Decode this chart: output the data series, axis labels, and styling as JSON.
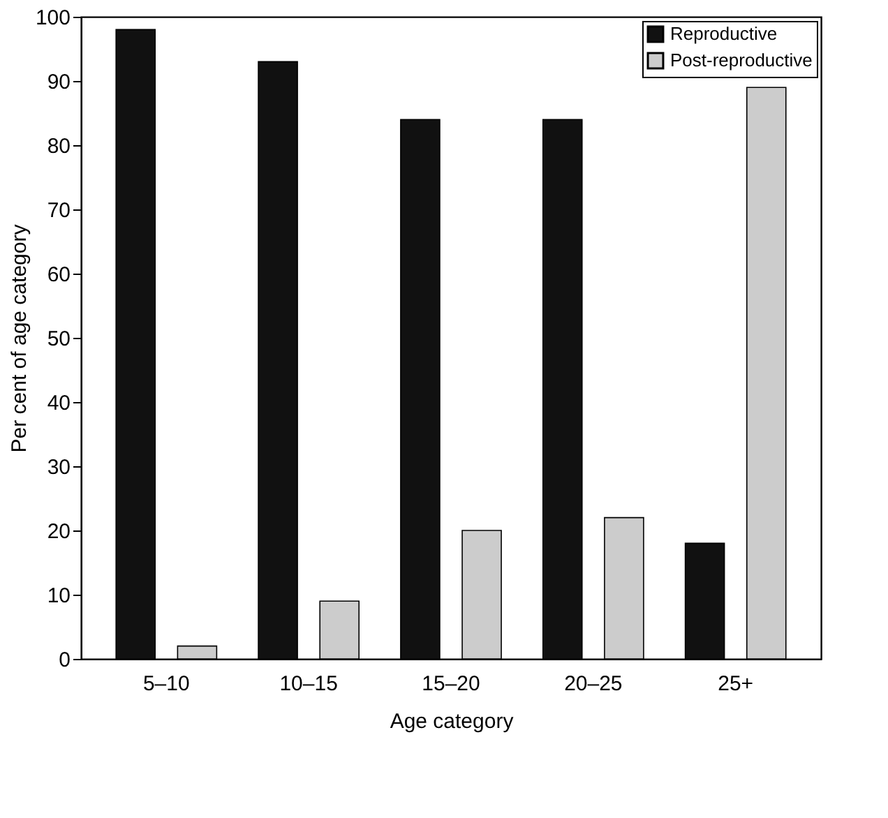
{
  "chart_data": {
    "type": "bar",
    "xlabel": "Age category",
    "ylabel": "Per cent of age category",
    "categories": [
      "5–10",
      "10–15",
      "15–20",
      "20–25",
      "25+"
    ],
    "series": [
      {
        "name": "Reproductive",
        "color": "#111111",
        "values": [
          98,
          93,
          84,
          84,
          18
        ]
      },
      {
        "name": "Post-reproductive",
        "color": "#cccccc",
        "values": [
          2,
          9,
          20,
          22,
          89
        ]
      }
    ],
    "ylim": [
      0,
      100
    ],
    "yticks": [
      0,
      10,
      20,
      30,
      40,
      50,
      60,
      70,
      80,
      90,
      100
    ],
    "grid": false,
    "legend": "top right"
  }
}
